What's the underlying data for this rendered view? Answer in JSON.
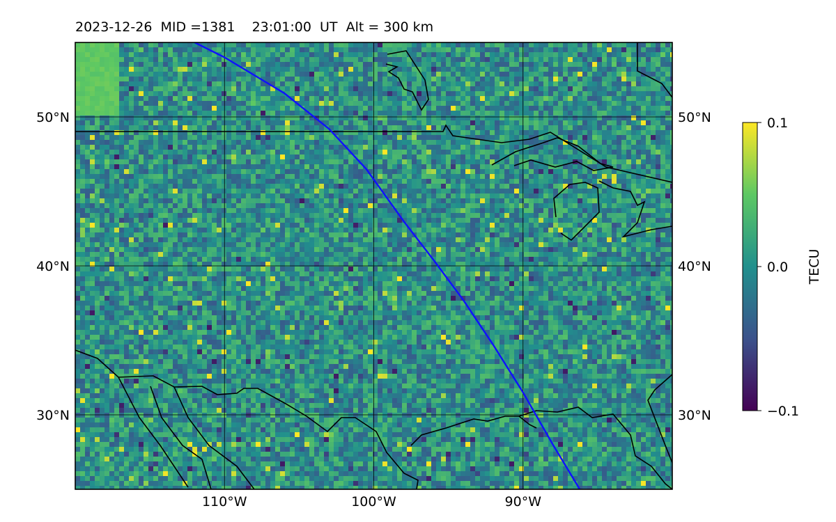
{
  "title": "2023-12-26  MID =1381    23:01:00  UT  Alt = 300 km",
  "map": {
    "lon_range": [
      -120,
      -80
    ],
    "lat_range": [
      25,
      55
    ],
    "lon_ticks": [
      {
        "value": -110,
        "label": "110°W"
      },
      {
        "value": -100,
        "label": "100°W"
      },
      {
        "value": -90,
        "label": "90°W"
      }
    ],
    "lat_ticks": [
      {
        "value": 50,
        "label": "50°N"
      },
      {
        "value": 40,
        "label": "40°N"
      },
      {
        "value": 30,
        "label": "30°N"
      }
    ],
    "gridlines": true,
    "background_map": "detrended TEC map with coastlines and borders",
    "satellite_track": {
      "color": "#1010ff",
      "points": [
        [
          -112,
          55
        ],
        [
          -110,
          54
        ],
        [
          -106,
          51.6
        ],
        [
          -103,
          49.2
        ],
        [
          -100.5,
          46.5
        ],
        [
          -98,
          43
        ],
        [
          -96,
          40.4
        ],
        [
          -94,
          37.7
        ],
        [
          -92,
          34.7
        ],
        [
          -90,
          31.5
        ],
        [
          -88,
          28
        ],
        [
          -86.2,
          25
        ]
      ]
    }
  },
  "colorbar": {
    "label": "TECU",
    "min": -0.1,
    "max": 0.1,
    "ticks": [
      {
        "value": 0.1,
        "label": "0.1"
      },
      {
        "value": 0.0,
        "label": "0.0"
      },
      {
        "value": -0.1,
        "label": "−0.1"
      }
    ],
    "colormap": [
      "#440154",
      "#3b528b",
      "#21908d",
      "#5dc863",
      "#fde725"
    ]
  }
}
